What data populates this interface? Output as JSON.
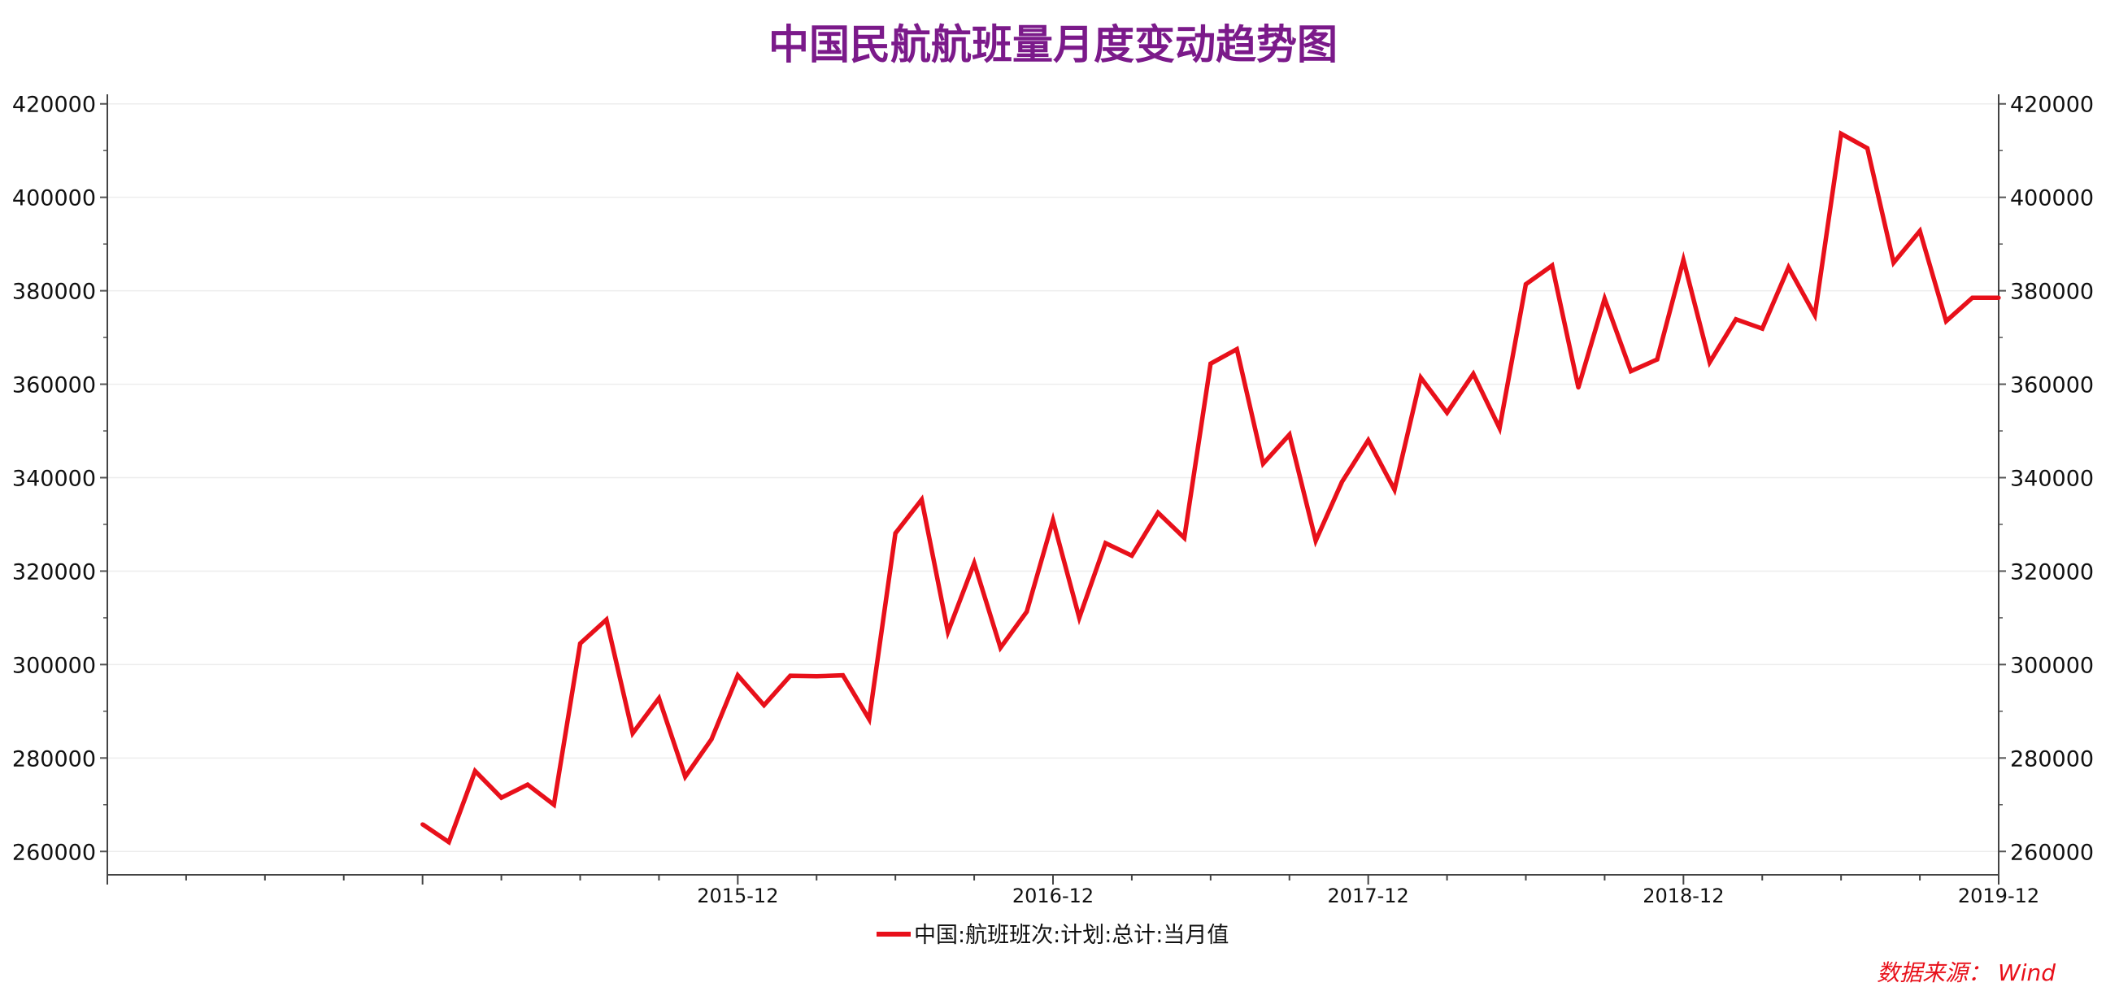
{
  "chart_data": {
    "type": "line",
    "title": "中国民航航班量月度变动趋势图",
    "xlabel": "",
    "ylabel": "",
    "x_ticks": [
      "2015-12",
      "2016-12",
      "2017-12",
      "2018-12",
      "2019-12"
    ],
    "y_ticks": [
      260000,
      280000,
      300000,
      320000,
      340000,
      360000,
      380000,
      400000,
      420000
    ],
    "ylim": [
      255000,
      421000
    ],
    "x_range": [
      "2013-12",
      "2019-12"
    ],
    "grid": true,
    "legend_position": "bottom-center",
    "series": [
      {
        "name": "中国:航班班次:计划:总计:当月值",
        "color": "#e8101a",
        "x": [
          "2014-12",
          "2015-01",
          "2015-02",
          "2015-03",
          "2015-04",
          "2015-05",
          "2015-06",
          "2015-07",
          "2015-08",
          "2015-09",
          "2015-10",
          "2015-11",
          "2015-12",
          "2016-01",
          "2016-02",
          "2016-03",
          "2016-04",
          "2016-05",
          "2016-06",
          "2016-07",
          "2016-08",
          "2016-09",
          "2016-10",
          "2016-11",
          "2016-12",
          "2017-01",
          "2017-02",
          "2017-03",
          "2017-04",
          "2017-05",
          "2017-06",
          "2017-07",
          "2017-08",
          "2017-09",
          "2017-10",
          "2017-11",
          "2017-12",
          "2018-01",
          "2018-02",
          "2018-03",
          "2018-04",
          "2018-05",
          "2018-06",
          "2018-07",
          "2018-08",
          "2018-09",
          "2018-10",
          "2018-11",
          "2018-12",
          "2019-01",
          "2019-02",
          "2019-03",
          "2019-04",
          "2019-05",
          "2019-06",
          "2019-07",
          "2019-08",
          "2019-09",
          "2019-10",
          "2019-11",
          "2019-12"
        ],
        "values": [
          265800,
          262000,
          277200,
          271500,
          274300,
          270000,
          304500,
          309600,
          285300,
          292800,
          276000,
          284000,
          297700,
          291300,
          297600,
          297500,
          297700,
          288300,
          328100,
          335300,
          307000,
          321700,
          303600,
          311300,
          330900,
          310000,
          326000,
          323300,
          332500,
          327100,
          364400,
          367500,
          343000,
          349200,
          326500,
          339100,
          348000,
          337400,
          361400,
          353900,
          362200,
          350600,
          381400,
          385400,
          359300,
          378300,
          362800,
          365300,
          386600,
          364700,
          373900,
          371900,
          385000,
          374800,
          413600,
          410500,
          386000,
          392800,
          373500,
          378500,
          378500
        ]
      }
    ],
    "source": "数据来源： Wind"
  }
}
